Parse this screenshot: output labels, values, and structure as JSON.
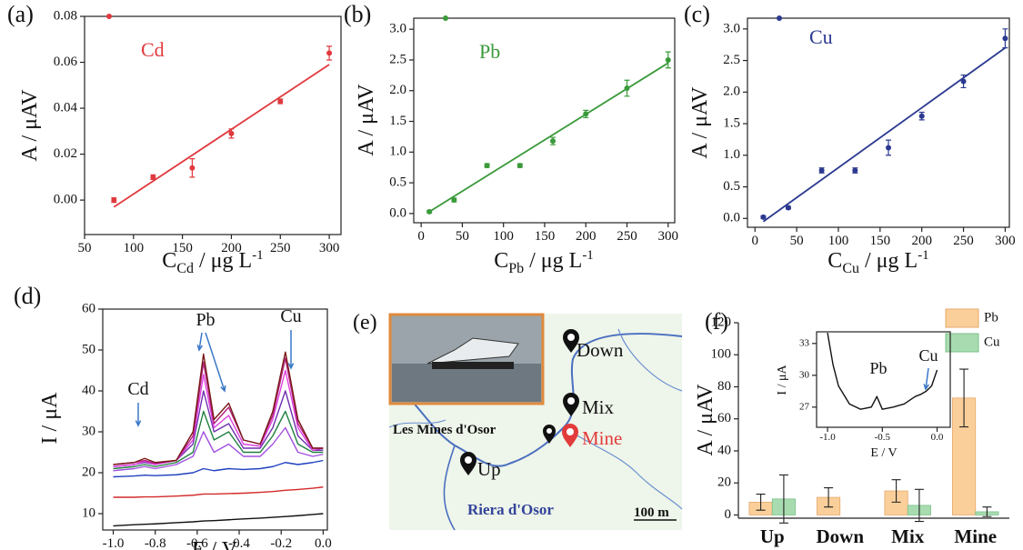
{
  "chart_data": [
    {
      "type": "scatter",
      "panel_label": "(a)",
      "y_label": "A / μAV",
      "x_label": {
        "main": "C",
        "sub": "Cd",
        "mid": " / μg L",
        "sup": "-1"
      },
      "series": [
        {
          "name": "Cd",
          "color": "#e0393e",
          "x": [
            80,
            120,
            160,
            200,
            250,
            300
          ],
          "values": [
            0.0,
            0.01,
            0.014,
            0.029,
            0.043,
            0.064
          ],
          "errors": [
            0.001,
            0.001,
            0.004,
            0.002,
            0.001,
            0.003
          ]
        }
      ],
      "fit": {
        "x": [
          80,
          300
        ],
        "values": [
          -0.003,
          0.059
        ]
      },
      "xlim": [
        50,
        312
      ],
      "xticks": [
        50,
        100,
        150,
        200,
        250,
        300
      ],
      "ylim": [
        -0.015,
        0.08
      ],
      "yticks": [
        {
          "value": 0,
          "label": "0.00"
        },
        0.02,
        0.04,
        0.06,
        0.08
      ]
    },
    {
      "type": "scatter",
      "panel_label": "(b)",
      "y_label": "A / μAV",
      "x_label": {
        "main": "C",
        "sub": "Pb",
        "mid": " / μg L",
        "sup": "-1"
      },
      "series": [
        {
          "name": "Pb",
          "color": "#3a9a3a",
          "x": [
            10,
            40,
            80,
            120,
            160,
            200,
            250,
            300
          ],
          "values": [
            0.03,
            0.22,
            0.78,
            0.78,
            1.18,
            1.62,
            2.04,
            2.5
          ],
          "errors": [
            0.02,
            0.03,
            0.03,
            0.03,
            0.06,
            0.06,
            0.13,
            0.13
          ]
        }
      ],
      "fit": {
        "x": [
          10,
          300
        ],
        "values": [
          0.03,
          2.45
        ]
      },
      "xlim": [
        -9,
        308
      ],
      "xticks": [
        0,
        50,
        100,
        150,
        200,
        250,
        300
      ],
      "ylim": [
        -0.15,
        3.18
      ],
      "yticks": [
        {
          "value": 0,
          "label": "0.0"
        },
        0.5,
        {
          "value": 1,
          "label": "1.0"
        },
        1.5,
        {
          "value": 2,
          "label": "2.0"
        },
        2.5,
        {
          "value": 3,
          "label": "3.0"
        }
      ]
    },
    {
      "type": "scatter",
      "panel_label": "(c)",
      "y_label": "A / μAV",
      "x_label": {
        "main": "C",
        "sub": "Cu",
        "mid": " / μg L",
        "sup": "-1"
      },
      "series": [
        {
          "name": "Cu",
          "color": "#2b3990",
          "x": [
            10,
            40,
            80,
            120,
            160,
            200,
            250,
            300
          ],
          "values": [
            0.02,
            0.17,
            0.76,
            0.76,
            1.12,
            1.62,
            2.17,
            2.85
          ],
          "errors": [
            0.02,
            0.02,
            0.04,
            0.04,
            0.12,
            0.06,
            0.1,
            0.15
          ]
        }
      ],
      "fit": {
        "x": [
          10,
          300
        ],
        "values": [
          -0.05,
          2.7
        ]
      },
      "xlim": [
        -9,
        305
      ],
      "xticks": [
        0,
        50,
        100,
        150,
        200,
        250,
        300
      ],
      "ylim": [
        -0.14,
        3.17
      ],
      "yticks": [
        {
          "value": 0,
          "label": "0.0"
        },
        0.5,
        {
          "value": 1,
          "label": "1.0"
        },
        1.5,
        {
          "value": 2,
          "label": "2.0"
        },
        2.5,
        {
          "value": 3,
          "label": "3.0"
        }
      ]
    },
    {
      "type": "line",
      "panel_label": "(d)",
      "y_label": "I / μA",
      "x_label": "E / V",
      "x": [
        -1.0,
        -0.9,
        -0.85,
        -0.8,
        -0.7,
        -0.62,
        -0.57,
        -0.52,
        -0.45,
        -0.38,
        -0.3,
        -0.24,
        -0.18,
        -0.12,
        -0.05,
        0.0
      ],
      "series": [
        {
          "color": "#111111",
          "values": [
            7,
            7.3,
            7.4,
            7.5,
            7.8,
            8,
            8.2,
            8.3,
            8.5,
            8.7,
            8.9,
            9.1,
            9.3,
            9.5,
            9.8,
            10
          ]
        },
        {
          "color": "#d42a2a",
          "values": [
            14,
            14,
            14.1,
            14.1,
            14.3,
            14.5,
            14.8,
            14.8,
            14.9,
            15,
            15.2,
            15.4,
            15.7,
            15.9,
            16.2,
            16.5
          ]
        },
        {
          "color": "#2040c0",
          "values": [
            19,
            19.2,
            19.4,
            19.3,
            19.5,
            20,
            21,
            20.5,
            21,
            20.8,
            21,
            21.5,
            22.5,
            22,
            22.5,
            23
          ]
        },
        {
          "color": "#a050e0",
          "values": [
            20.5,
            21,
            21.5,
            21,
            22,
            24,
            30,
            25,
            27,
            24,
            24,
            27,
            31,
            25,
            24,
            24.5
          ]
        },
        {
          "color": "#208040",
          "values": [
            21,
            21.5,
            22,
            21.5,
            22.5,
            25,
            35,
            28,
            30,
            25,
            25,
            29,
            35,
            27,
            25,
            25
          ]
        },
        {
          "color": "#7030b0",
          "values": [
            21.5,
            22,
            22.5,
            22,
            23,
            27,
            40,
            30,
            32,
            26,
            26,
            31,
            40,
            29,
            25.5,
            25.5
          ]
        },
        {
          "color": "#e040e0",
          "values": [
            21.5,
            22,
            22.8,
            22,
            23,
            28,
            44,
            31,
            34,
            27,
            26.5,
            33,
            45,
            31,
            25.5,
            26
          ]
        },
        {
          "color": "#b0207a",
          "values": [
            22,
            22.5,
            23,
            22.3,
            23,
            29,
            47,
            32,
            36,
            28,
            27,
            34,
            48,
            32,
            26,
            26
          ]
        },
        {
          "color": "#7a1818",
          "values": [
            22,
            22.5,
            23.5,
            22.5,
            23,
            30,
            49,
            33,
            37,
            28,
            27,
            35,
            49.5,
            33,
            26,
            26
          ]
        }
      ],
      "annotations": [
        "Cd",
        "Pb",
        "Cu"
      ],
      "xlim": [
        -1.05,
        0.02
      ],
      "xticks": [
        {
          "value": -1,
          "label": "-1.0"
        },
        -0.8,
        -0.6,
        -0.4,
        -0.2,
        {
          "value": 0,
          "label": "0.0"
        }
      ],
      "ylim": [
        6,
        60
      ],
      "yticks": [
        10,
        20,
        30,
        40,
        50,
        60
      ]
    },
    {
      "type": "bar",
      "panel_label": "(f)",
      "y_label": "A / μAV",
      "categories": [
        "Up",
        "Down",
        "Mix",
        "Mine"
      ],
      "series": [
        {
          "name": "Pb",
          "color": "#fbcf9a",
          "values": [
            8,
            11,
            15,
            73
          ],
          "errors": [
            5,
            6,
            7,
            18
          ]
        },
        {
          "name": "Cu",
          "color": "#a8dcb0",
          "values": [
            10,
            null,
            6,
            2
          ],
          "errors": [
            15,
            null,
            10,
            3
          ]
        }
      ],
      "legend": "upper right",
      "ylim": [
        -2,
        120
      ],
      "yticks": [
        0,
        20,
        40,
        60,
        80,
        100,
        120
      ]
    },
    {
      "type": "line",
      "y_label": "I / μA",
      "x_label": "E / V",
      "x": [
        -1.0,
        -0.95,
        -0.9,
        -0.8,
        -0.7,
        -0.6,
        -0.55,
        -0.5,
        -0.4,
        -0.3,
        -0.2,
        -0.15,
        -0.1,
        -0.05,
        0.0
      ],
      "series": [
        {
          "color": "#111111",
          "values": [
            34,
            31,
            29,
            27.3,
            26.8,
            27,
            28,
            26.8,
            27,
            27.3,
            28,
            28.2,
            28.5,
            29,
            30.5
          ]
        }
      ],
      "annotations": [
        "Pb",
        "Cu"
      ],
      "xlim": [
        -1.1,
        0.12
      ],
      "xticks": [
        {
          "value": -1,
          "label": "-1.0"
        },
        -0.5,
        {
          "value": 0,
          "label": "0.0"
        }
      ],
      "ylim": [
        25.1,
        34.1
      ],
      "yticks": [
        27,
        30,
        33
      ]
    }
  ],
  "map": {
    "panel_label": "(e)",
    "markers": [
      "Down",
      "Mix",
      "Les Mines d'Osor",
      "Mine",
      "Up"
    ],
    "river": "Riera d'Osor",
    "scale": "100 m"
  }
}
